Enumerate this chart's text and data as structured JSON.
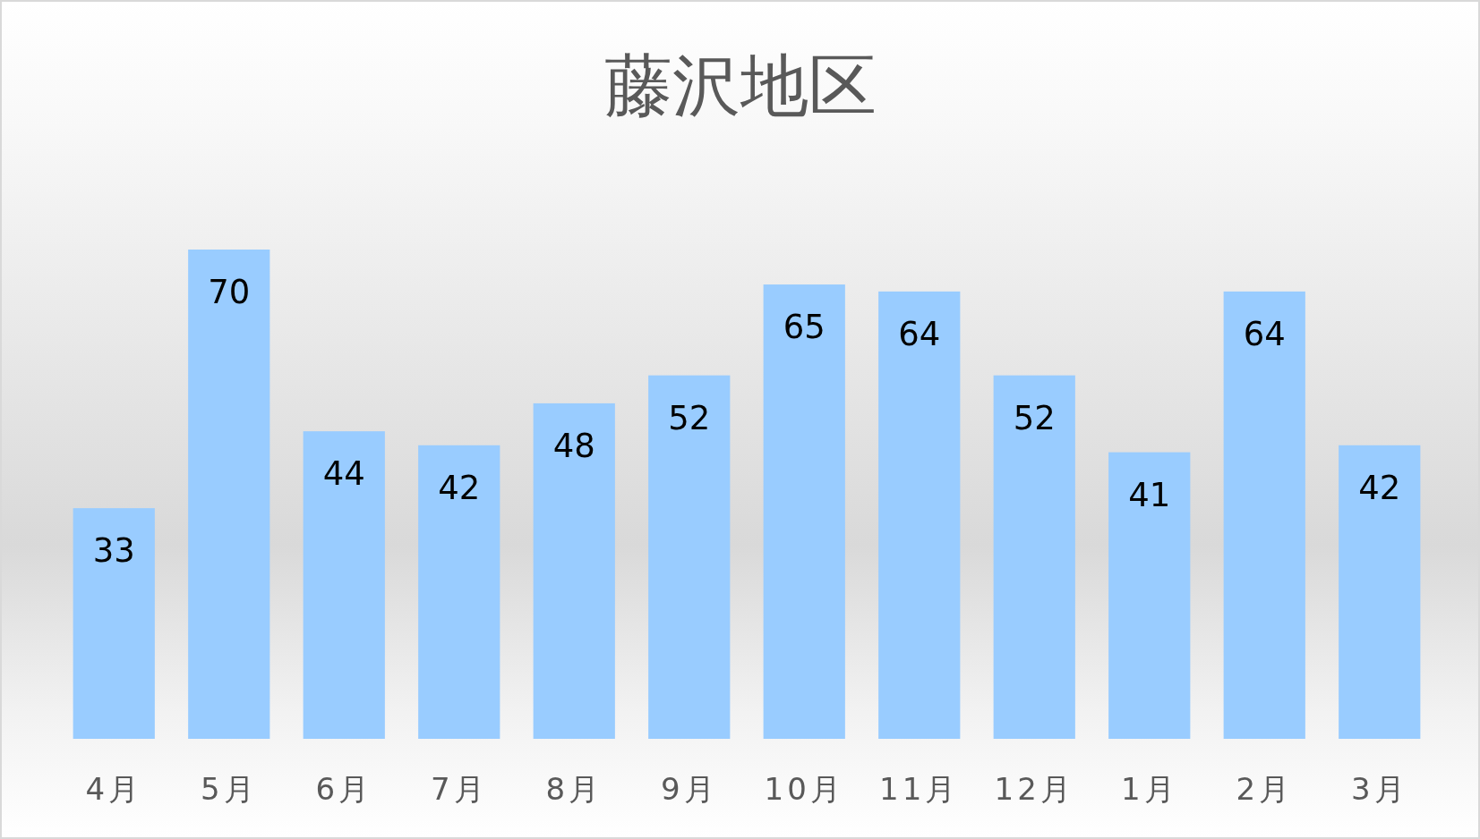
{
  "chart_data": {
    "type": "bar",
    "title": "藤沢地区",
    "categories": [
      "4月",
      "5月",
      "6月",
      "7月",
      "8月",
      "9月",
      "10月",
      "11月",
      "12月",
      "1月",
      "2月",
      "3月"
    ],
    "values": [
      33,
      70,
      44,
      42,
      48,
      52,
      65,
      64,
      52,
      41,
      64,
      42
    ],
    "color": "#99ccff",
    "data_labels": true,
    "tick_labels": "x"
  }
}
